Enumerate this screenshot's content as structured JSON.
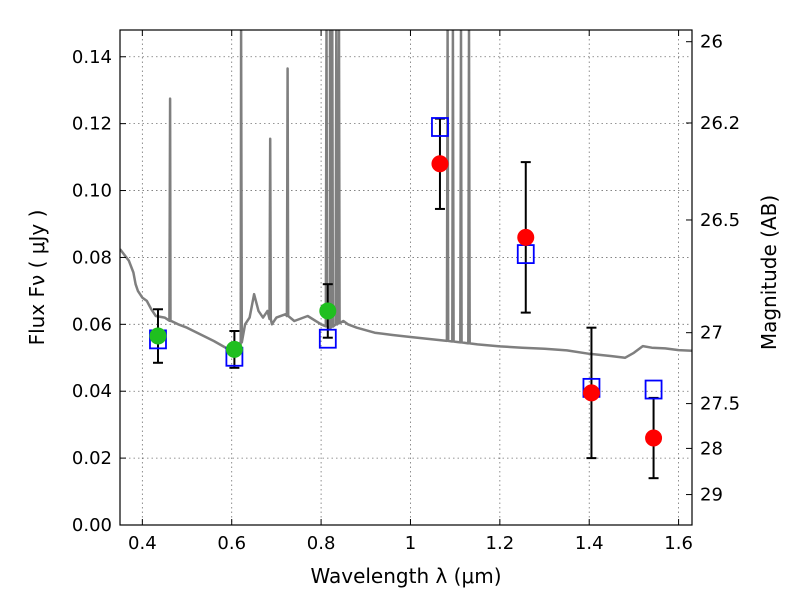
{
  "chart_data": {
    "type": "scatter",
    "xlabel": "Wavelength  λ (μm)",
    "ylabel": "Flux  Fν  ( μJy )",
    "ylabel_right": "Magnitude (AB)",
    "xlim": [
      0.35,
      1.63
    ],
    "ylim": [
      0.0,
      0.148
    ],
    "x_ticks": [
      0.4,
      0.6,
      0.8,
      1.0,
      1.2,
      1.4,
      1.6
    ],
    "x_tick_labels": [
      "0.4",
      "0.6",
      "0.8",
      "1",
      "1.2",
      "1.4",
      "1.6"
    ],
    "y_ticks": [
      0.0,
      0.02,
      0.04,
      0.06,
      0.08,
      0.1,
      0.12,
      0.14
    ],
    "y_tick_labels": [
      "0.00",
      "0.02",
      "0.04",
      "0.06",
      "0.08",
      "0.10",
      "0.12",
      "0.14"
    ],
    "right_ticks": [
      {
        "label": "26",
        "flux": 0.1445
      },
      {
        "label": "26.2",
        "flux": 0.1202
      },
      {
        "label": "26.5",
        "flux": 0.0912
      },
      {
        "label": "27",
        "flux": 0.0575
      },
      {
        "label": "27.5",
        "flux": 0.0363
      },
      {
        "label": "28",
        "flux": 0.0229
      },
      {
        "label": "29",
        "flux": 0.0091
      }
    ],
    "grid": true,
    "series": [
      {
        "kind": "green-points",
        "color": "#1fbf1f",
        "points": [
          {
            "x": 0.435,
            "y": 0.0565,
            "err_low": 0.0485,
            "err_high": 0.0645
          },
          {
            "x": 0.606,
            "y": 0.0525,
            "err_low": 0.047,
            "err_high": 0.058
          },
          {
            "x": 0.815,
            "y": 0.064,
            "err_low": 0.056,
            "err_high": 0.072
          }
        ]
      },
      {
        "kind": "red-points",
        "color": "#ff0000",
        "points": [
          {
            "x": 1.066,
            "y": 0.108,
            "err_low": 0.0945,
            "err_high": 0.1215
          },
          {
            "x": 1.258,
            "y": 0.086,
            "err_low": 0.0635,
            "err_high": 0.1085
          },
          {
            "x": 1.405,
            "y": 0.0395,
            "err_low": 0.02,
            "err_high": 0.059
          },
          {
            "x": 1.544,
            "y": 0.026,
            "err_low": 0.014,
            "err_high": 0.038
          }
        ]
      },
      {
        "kind": "blue-squares",
        "color": "#0000ff",
        "points": [
          {
            "x": 0.435,
            "y": 0.0555
          },
          {
            "x": 0.606,
            "y": 0.0503
          },
          {
            "x": 0.815,
            "y": 0.0557
          },
          {
            "x": 1.066,
            "y": 0.119
          },
          {
            "x": 1.258,
            "y": 0.081
          },
          {
            "x": 1.405,
            "y": 0.041
          },
          {
            "x": 1.544,
            "y": 0.0405
          }
        ]
      },
      {
        "kind": "gray-spectrum",
        "color": "#7f7f7f",
        "baseline": [
          [
            0.35,
            0.0825
          ],
          [
            0.37,
            0.079
          ],
          [
            0.38,
            0.0755
          ],
          [
            0.385,
            0.072
          ],
          [
            0.39,
            0.07
          ],
          [
            0.4,
            0.068
          ],
          [
            0.41,
            0.067
          ],
          [
            0.42,
            0.0645
          ],
          [
            0.43,
            0.0625
          ],
          [
            0.45,
            0.062
          ],
          [
            0.463,
            0.061
          ],
          [
            0.48,
            0.06
          ],
          [
            0.5,
            0.059
          ],
          [
            0.53,
            0.057
          ],
          [
            0.56,
            0.055
          ],
          [
            0.6,
            0.052
          ],
          [
            0.62,
            0.054
          ],
          [
            0.63,
            0.06
          ],
          [
            0.64,
            0.062
          ],
          [
            0.65,
            0.069
          ],
          [
            0.66,
            0.064
          ],
          [
            0.67,
            0.062
          ],
          [
            0.68,
            0.064
          ],
          [
            0.69,
            0.06
          ],
          [
            0.7,
            0.062
          ],
          [
            0.72,
            0.063
          ],
          [
            0.74,
            0.061
          ],
          [
            0.77,
            0.0625
          ],
          [
            0.8,
            0.06
          ],
          [
            0.82,
            0.059
          ],
          [
            0.85,
            0.061
          ],
          [
            0.86,
            0.06
          ],
          [
            0.88,
            0.059
          ],
          [
            0.92,
            0.0575
          ],
          [
            0.96,
            0.0568
          ],
          [
            1.0,
            0.0562
          ],
          [
            1.05,
            0.0555
          ],
          [
            1.1,
            0.0548
          ],
          [
            1.15,
            0.054
          ],
          [
            1.2,
            0.0534
          ],
          [
            1.25,
            0.053
          ],
          [
            1.3,
            0.0527
          ],
          [
            1.35,
            0.0522
          ],
          [
            1.4,
            0.0512
          ],
          [
            1.45,
            0.0505
          ],
          [
            1.48,
            0.05
          ],
          [
            1.5,
            0.0515
          ],
          [
            1.52,
            0.0535
          ],
          [
            1.54,
            0.053
          ],
          [
            1.57,
            0.0528
          ],
          [
            1.6,
            0.0523
          ],
          [
            1.63,
            0.0521
          ]
        ],
        "lines": [
          {
            "x": 0.462,
            "peak": 0.1275
          },
          {
            "x": 0.621,
            "peak": 0.148
          },
          {
            "x": 0.686,
            "peak": 0.1155
          },
          {
            "x": 0.725,
            "peak": 0.1365
          },
          {
            "x": 0.812,
            "peak": 0.148
          },
          {
            "x": 0.82,
            "peak": 0.148
          },
          {
            "x": 0.825,
            "peak": 0.148
          },
          {
            "x": 0.834,
            "peak": 0.148
          },
          {
            "x": 0.84,
            "peak": 0.148
          },
          {
            "x": 1.083,
            "peak": 0.148
          },
          {
            "x": 1.095,
            "peak": 0.148
          },
          {
            "x": 1.113,
            "peak": 0.148
          },
          {
            "x": 1.131,
            "peak": 0.148
          }
        ]
      }
    ]
  }
}
